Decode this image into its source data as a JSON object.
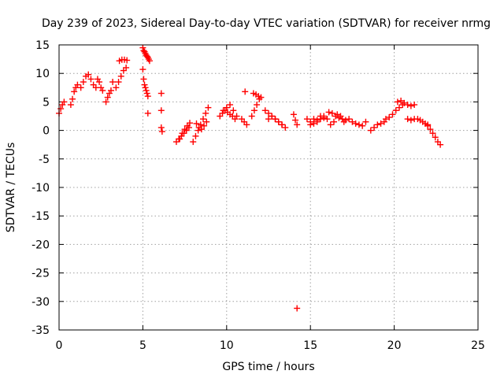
{
  "chart_data": {
    "type": "scatter",
    "title": "Day 239 of 2023, Sidereal Day-to-day VTEC variation (SDTVAR) for receiver nrmg",
    "xlabel": "GPS time / hours",
    "ylabel": "SDTVAR / TECUs",
    "xlim": [
      0,
      25
    ],
    "ylim": [
      -35,
      15
    ],
    "xticks": [
      0,
      5,
      10,
      15,
      20,
      25
    ],
    "yticks": [
      15,
      10,
      5,
      0,
      -5,
      -10,
      -15,
      -20,
      -25,
      -30,
      -35
    ],
    "grid": true,
    "marker": "+",
    "color": "#ff0000",
    "segments": [
      {
        "x": [
          0.0,
          0.1,
          0.2,
          0.3
        ],
        "y": [
          3.0,
          3.8,
          4.5,
          5.0
        ]
      },
      {
        "x": [
          0.7,
          0.8,
          0.9,
          1.0,
          1.1
        ],
        "y": [
          4.5,
          5.5,
          6.8,
          7.5,
          8.0
        ]
      },
      {
        "x": [
          1.3,
          1.45,
          1.6,
          1.75,
          1.9,
          2.05,
          2.2
        ],
        "y": [
          7.5,
          8.5,
          9.5,
          9.8,
          9.0,
          8.0,
          7.5
        ]
      },
      {
        "x": [
          2.3,
          2.4,
          2.5,
          2.6
        ],
        "y": [
          9.0,
          8.5,
          7.5,
          7.0
        ]
      },
      {
        "x": [
          2.8,
          2.9,
          3.0,
          3.1,
          3.2
        ],
        "y": [
          5.0,
          5.8,
          6.5,
          7.0,
          8.5
        ]
      },
      {
        "x": [
          3.4,
          3.55,
          3.7,
          3.85,
          4.0
        ],
        "y": [
          7.5,
          8.5,
          9.5,
          10.5,
          11.0
        ]
      },
      {
        "x": [
          3.6,
          3.75,
          3.9,
          4.05
        ],
        "y": [
          12.2,
          12.4,
          12.4,
          12.3
        ]
      },
      {
        "x": [
          5.0,
          5.05,
          5.1,
          5.15,
          5.2,
          5.25,
          5.3,
          5.35,
          5.4
        ],
        "y": [
          14.5,
          14.0,
          13.8,
          13.5,
          13.2,
          13.0,
          12.8,
          12.5,
          12.2
        ]
      },
      {
        "x": [
          5.0,
          5.05,
          5.1,
          5.15,
          5.2,
          5.25,
          5.3
        ],
        "y": [
          10.7,
          9.0,
          8.0,
          7.5,
          7.0,
          6.5,
          6.0
        ]
      },
      {
        "x": [
          5.3
        ],
        "y": [
          3.0
        ]
      },
      {
        "x": [
          6.1
        ],
        "y": [
          6.5
        ]
      },
      {
        "x": [
          6.1
        ],
        "y": [
          3.5
        ]
      },
      {
        "x": [
          6.1,
          6.15
        ],
        "y": [
          0.5,
          -0.2
        ]
      },
      {
        "x": [
          7.0,
          7.15,
          7.3,
          7.45,
          7.6,
          7.75
        ],
        "y": [
          -2.0,
          -1.5,
          -1.0,
          -0.5,
          0.0,
          0.5
        ]
      },
      {
        "x": [
          7.2,
          7.35,
          7.5,
          7.65,
          7.8
        ],
        "y": [
          -1.5,
          -0.5,
          0.2,
          0.8,
          1.3
        ]
      },
      {
        "x": [
          8.0,
          8.15,
          8.3,
          8.45,
          8.6,
          8.75,
          8.9
        ],
        "y": [
          -2.0,
          -1.0,
          0.0,
          1.0,
          2.0,
          3.0,
          4.0
        ]
      },
      {
        "x": [
          8.2,
          8.35,
          8.5,
          8.65,
          8.8
        ],
        "y": [
          1.2,
          0.5,
          0.2,
          0.8,
          1.5
        ]
      },
      {
        "x": [
          9.6,
          9.75,
          9.9,
          10.05,
          10.2,
          10.35,
          10.5
        ],
        "y": [
          2.5,
          3.0,
          3.5,
          3.2,
          2.8,
          2.5,
          2.0
        ]
      },
      {
        "x": [
          9.8,
          10.0,
          10.2,
          10.4,
          10.6
        ],
        "y": [
          3.5,
          4.0,
          4.5,
          3.5,
          2.5
        ]
      },
      {
        "x": [
          10.9,
          11.05,
          11.2
        ],
        "y": [
          2.0,
          1.5,
          1.0
        ]
      },
      {
        "x": [
          11.1
        ],
        "y": [
          6.8
        ]
      },
      {
        "x": [
          11.5,
          11.65,
          11.8,
          11.95
        ],
        "y": [
          2.5,
          3.5,
          4.5,
          5.5
        ]
      },
      {
        "x": [
          11.6,
          11.75,
          11.9,
          12.05
        ],
        "y": [
          6.5,
          6.3,
          6.0,
          5.8
        ]
      },
      {
        "x": [
          12.3,
          12.5,
          12.7,
          12.9,
          13.1,
          13.3
        ],
        "y": [
          3.5,
          3.0,
          2.5,
          2.0,
          1.5,
          1.0
        ]
      },
      {
        "x": [
          12.5,
          12.7,
          12.9,
          13.1,
          13.3,
          13.5
        ],
        "y": [
          2.0,
          2.5,
          2.0,
          1.5,
          1.0,
          0.5
        ]
      },
      {
        "x": [
          14.0,
          14.1
        ],
        "y": [
          2.8,
          1.8
        ]
      },
      {
        "x": [
          14.2
        ],
        "y": [
          1.0
        ]
      },
      {
        "x": [
          14.2
        ],
        "y": [
          -31.2
        ]
      },
      {
        "x": [
          14.8,
          15.0,
          15.2,
          15.4,
          15.6,
          15.8,
          16.0
        ],
        "y": [
          2.0,
          1.5,
          1.2,
          1.5,
          2.0,
          2.5,
          2.0
        ]
      },
      {
        "x": [
          15.0,
          15.2,
          15.4,
          15.6,
          15.8
        ],
        "y": [
          1.0,
          2.0,
          1.8,
          2.5,
          2.2
        ]
      },
      {
        "x": [
          16.1,
          16.3,
          16.5,
          16.7,
          16.9,
          17.1
        ],
        "y": [
          3.2,
          3.0,
          2.5,
          2.2,
          2.0,
          1.8
        ]
      },
      {
        "x": [
          16.2,
          16.4,
          16.6,
          16.8,
          17.0
        ],
        "y": [
          1.0,
          1.5,
          2.8,
          2.5,
          1.5
        ]
      },
      {
        "x": [
          17.3,
          17.5,
          17.7,
          17.9,
          18.1,
          18.3
        ],
        "y": [
          2.0,
          1.5,
          1.2,
          1.0,
          0.8,
          1.5
        ]
      },
      {
        "x": [
          18.6,
          18.8,
          19.0,
          19.2,
          19.4
        ],
        "y": [
          0.0,
          0.5,
          1.0,
          1.2,
          1.5
        ]
      },
      {
        "x": [
          19.5,
          19.7,
          19.9,
          20.1,
          20.3,
          20.5
        ],
        "y": [
          2.0,
          2.3,
          2.8,
          3.5,
          4.0,
          4.5
        ]
      },
      {
        "x": [
          20.2,
          20.4,
          20.6,
          20.8,
          21.0,
          21.2
        ],
        "y": [
          5.0,
          5.2,
          4.8,
          4.5,
          4.3,
          4.5
        ]
      },
      {
        "x": [
          20.8,
          21.0,
          21.2
        ],
        "y": [
          2.0,
          1.8,
          2.0
        ]
      },
      {
        "x": [
          21.4,
          21.55,
          21.7,
          21.85,
          22.0
        ],
        "y": [
          2.0,
          1.8,
          1.5,
          1.2,
          1.0
        ]
      },
      {
        "x": [
          22.0,
          22.15,
          22.3,
          22.45,
          22.6,
          22.75
        ],
        "y": [
          0.8,
          0.2,
          -0.5,
          -1.2,
          -2.0,
          -2.5
        ]
      }
    ]
  }
}
